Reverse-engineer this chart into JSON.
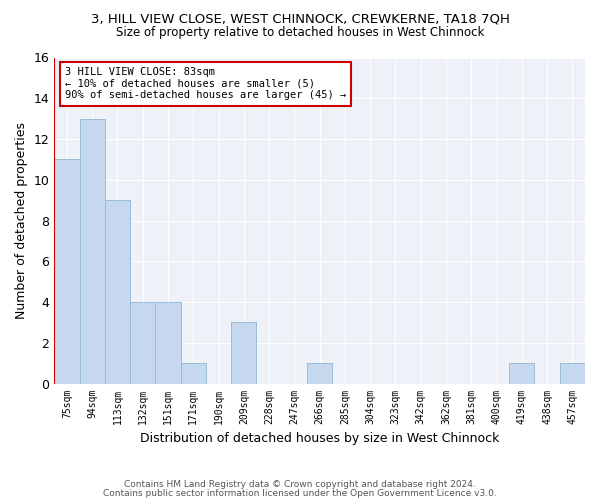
{
  "title1": "3, HILL VIEW CLOSE, WEST CHINNOCK, CREWKERNE, TA18 7QH",
  "title2": "Size of property relative to detached houses in West Chinnock",
  "xlabel": "Distribution of detached houses by size in West Chinnock",
  "ylabel": "Number of detached properties",
  "categories": [
    "75sqm",
    "94sqm",
    "113sqm",
    "132sqm",
    "151sqm",
    "171sqm",
    "190sqm",
    "209sqm",
    "228sqm",
    "247sqm",
    "266sqm",
    "285sqm",
    "304sqm",
    "323sqm",
    "342sqm",
    "362sqm",
    "381sqm",
    "400sqm",
    "419sqm",
    "438sqm",
    "457sqm"
  ],
  "values": [
    11,
    13,
    9,
    4,
    4,
    1,
    0,
    3,
    0,
    0,
    1,
    0,
    0,
    0,
    0,
    0,
    0,
    0,
    1,
    0,
    1
  ],
  "bar_color": "#c5d8ed",
  "bar_edge_color": "#9abcd8",
  "subject_line_color": "#cc0000",
  "annotation_text": "3 HILL VIEW CLOSE: 83sqm\n← 10% of detached houses are smaller (5)\n90% of semi-detached houses are larger (45) →",
  "annotation_box_color": "#cc0000",
  "ylim": [
    0,
    16
  ],
  "yticks": [
    0,
    2,
    4,
    6,
    8,
    10,
    12,
    14,
    16
  ],
  "footer1": "Contains HM Land Registry data © Crown copyright and database right 2024.",
  "footer2": "Contains public sector information licensed under the Open Government Licence v3.0.",
  "bg_color": "#ffffff",
  "plot_bg_color": "#eef2f8"
}
